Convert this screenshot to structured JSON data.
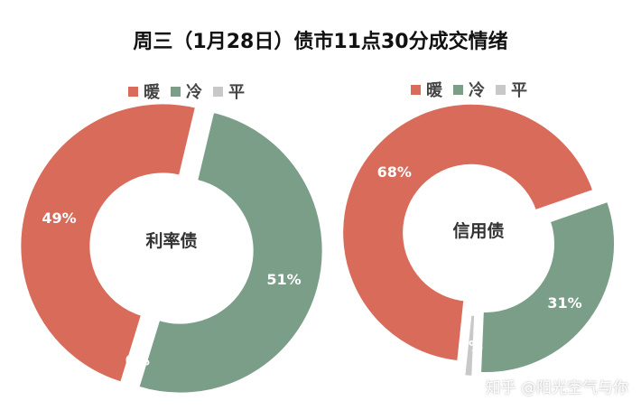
{
  "title": "周三（1月28日）债市11点30分成交情绪",
  "watermark": "知乎 @阳光空气与你",
  "colors": {
    "warm": "#d96b5a",
    "cold": "#7a9e88",
    "flat": "#c8c8c8"
  },
  "chart_data": [
    {
      "type": "pie",
      "center_label": "利率债",
      "legend_placement": "top",
      "categories": [
        "暖",
        "冷",
        "平"
      ],
      "values": [
        49,
        51,
        0
      ],
      "labels": [
        "49%",
        "51%",
        "0%"
      ]
    },
    {
      "type": "pie",
      "center_label": "信用债",
      "legend_placement": "top",
      "categories": [
        "暖",
        "冷",
        "平"
      ],
      "values": [
        68,
        31,
        1
      ],
      "labels": [
        "68%",
        "31%",
        "1%"
      ]
    }
  ]
}
